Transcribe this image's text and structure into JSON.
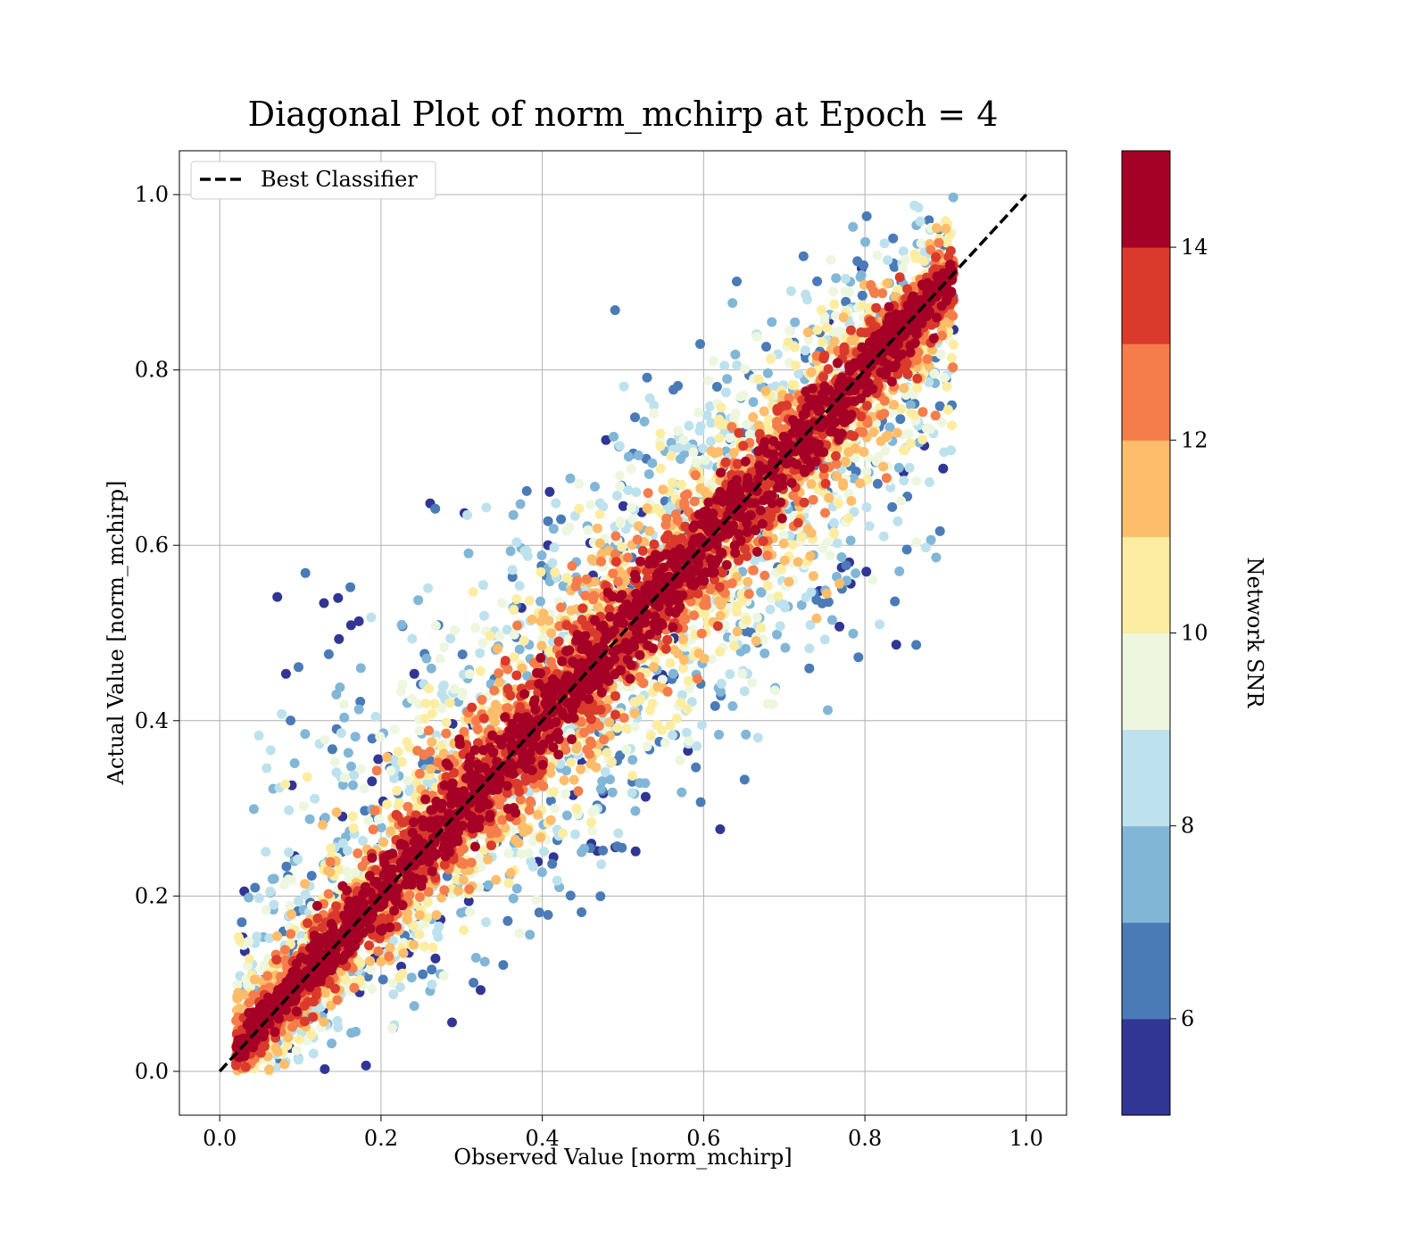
{
  "chart_data": {
    "type": "scatter",
    "title": "Diagonal Plot of norm_mchirp at Epoch = 4",
    "xlabel": "Observed Value [norm_mchirp]",
    "ylabel": "Actual Value [norm_mchirp]",
    "xlim": [
      -0.05,
      1.05
    ],
    "ylim": [
      -0.05,
      1.05
    ],
    "xticks": [
      "0.0",
      "0.2",
      "0.4",
      "0.6",
      "0.8",
      "1.0"
    ],
    "yticks": [
      "0.0",
      "0.2",
      "0.4",
      "0.6",
      "0.8",
      "1.0"
    ],
    "grid": true,
    "legend": {
      "placement": "upper-left",
      "entries": [
        "Best Classifier"
      ]
    },
    "reference_line": {
      "name": "Best Classifier",
      "style": "dashed",
      "color": "#000000",
      "x": [
        0,
        1
      ],
      "y": [
        0,
        1
      ]
    },
    "point_cloud": {
      "x_range": [
        0.02,
        0.91
      ],
      "y_range": [
        0.0,
        1.0
      ],
      "concentration": "along y = x; high-SNR points tightly on the diagonal, low-SNR points scattered widely off it",
      "widest_scatter_center": 0.4
    },
    "colorbar": {
      "label": "Network SNR",
      "min": 5,
      "max": 15,
      "ticks": [
        "6",
        "8",
        "10",
        "12",
        "14"
      ],
      "tick_values": [
        6,
        8,
        10,
        12,
        14
      ],
      "bins": [
        5,
        6,
        7,
        8,
        9,
        10,
        11,
        12,
        13,
        14,
        15
      ],
      "colors": [
        "#313695",
        "#4a7bb7",
        "#82b6d6",
        "#bde2ee",
        "#edf7e0",
        "#fdeda2",
        "#fdbd6b",
        "#f57d4b",
        "#d93a2c",
        "#a50026"
      ]
    }
  }
}
